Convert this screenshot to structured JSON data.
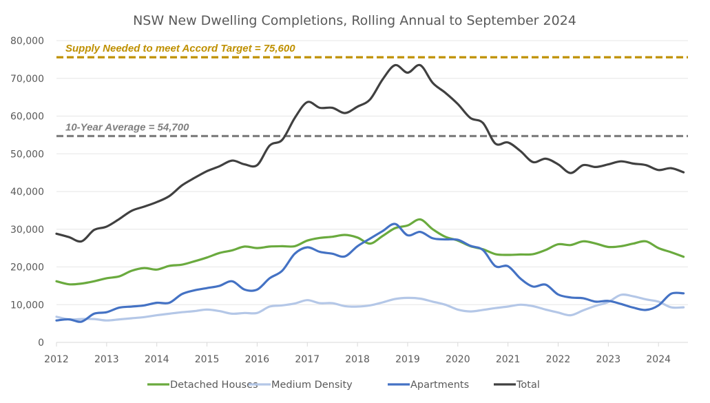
{
  "chart_data": {
    "type": "line",
    "title": "NSW New Dwelling Completions, Rolling Annual to September 2024",
    "xlabel": "",
    "ylabel": "",
    "xlim": [
      2012,
      2024.6
    ],
    "ylim": [
      0,
      80000
    ],
    "grid": true,
    "legend_position": "bottom",
    "x_ticks": [
      2012,
      2013,
      2014,
      2015,
      2016,
      2017,
      2018,
      2019,
      2020,
      2021,
      2022,
      2023,
      2024
    ],
    "x_tick_labels": [
      "2012",
      "2013",
      "2014",
      "2015",
      "2016",
      "2017",
      "2018",
      "2019",
      "2020",
      "2021",
      "2022",
      "2023",
      "2024"
    ],
    "y_ticks": [
      0,
      10000,
      20000,
      30000,
      40000,
      50000,
      60000,
      70000,
      80000
    ],
    "y_tick_labels": [
      "0",
      "10,000",
      "20,000",
      "30,000",
      "40,000",
      "50,000",
      "60,000",
      "70,000",
      "80,000"
    ],
    "x": [
      2012.0,
      2012.25,
      2012.5,
      2012.75,
      2013.0,
      2013.25,
      2013.5,
      2013.75,
      2014.0,
      2014.25,
      2014.5,
      2014.75,
      2015.0,
      2015.25,
      2015.5,
      2015.75,
      2016.0,
      2016.25,
      2016.5,
      2016.75,
      2017.0,
      2017.25,
      2017.5,
      2017.75,
      2018.0,
      2018.25,
      2018.5,
      2018.75,
      2019.0,
      2019.25,
      2019.5,
      2019.75,
      2020.0,
      2020.25,
      2020.5,
      2020.75,
      2021.0,
      2021.25,
      2021.5,
      2021.75,
      2022.0,
      2022.25,
      2022.5,
      2022.75,
      2023.0,
      2023.25,
      2023.5,
      2023.75,
      2024.0,
      2024.25,
      2024.5
    ],
    "series": [
      {
        "name": "Detached Houses",
        "color": "#6aaa3e",
        "values": [
          16200,
          15400,
          15600,
          16200,
          17000,
          17500,
          19000,
          19700,
          19300,
          20300,
          20600,
          21500,
          22500,
          23700,
          24400,
          25400,
          25000,
          25400,
          25500,
          25500,
          27000,
          27700,
          28000,
          28500,
          27800,
          26200,
          28200,
          30300,
          31000,
          32600,
          30000,
          28000,
          27000,
          25500,
          24700,
          23400,
          23200,
          23300,
          23400,
          24500,
          26000,
          25800,
          26800,
          26200,
          25300,
          25500,
          26200,
          26800,
          25000,
          23900,
          22700
        ]
      },
      {
        "name": "Medium Density",
        "color": "#b4c7e7",
        "values": [
          6800,
          6100,
          6200,
          6200,
          5800,
          6100,
          6400,
          6700,
          7200,
          7600,
          8000,
          8300,
          8700,
          8300,
          7600,
          7800,
          7800,
          9500,
          9800,
          10300,
          11200,
          10400,
          10400,
          9600,
          9500,
          9800,
          10600,
          11500,
          11800,
          11600,
          10800,
          10000,
          8700,
          8200,
          8600,
          9100,
          9500,
          10000,
          9600,
          8700,
          7900,
          7200,
          8500,
          9700,
          10700,
          12600,
          12200,
          11400,
          10800,
          9300,
          9300
        ]
      },
      {
        "name": "Apartments",
        "color": "#4472c4",
        "values": [
          5800,
          6100,
          5500,
          7600,
          8000,
          9200,
          9500,
          9800,
          10500,
          10500,
          12800,
          13800,
          14400,
          15000,
          16200,
          14000,
          14000,
          17000,
          19000,
          23500,
          25200,
          24000,
          23500,
          22800,
          25500,
          27500,
          29500,
          31400,
          28400,
          29300,
          27600,
          27300,
          27200,
          25600,
          24500,
          20200,
          20200,
          16900,
          14800,
          15300,
          12700,
          11900,
          11700,
          10800,
          11000,
          10200,
          9200,
          8600,
          9800,
          12900,
          13000
        ]
      },
      {
        "name": "Total",
        "color": "#404040",
        "values": [
          28800,
          27900,
          26800,
          29800,
          30700,
          32700,
          34900,
          36000,
          37200,
          38800,
          41600,
          43600,
          45400,
          46700,
          48200,
          47200,
          47000,
          52200,
          53700,
          59500,
          63700,
          62200,
          62200,
          60800,
          62500,
          64400,
          69700,
          73500,
          71500,
          73500,
          68800,
          66200,
          63200,
          59500,
          58200,
          52700,
          53000,
          50700,
          47800,
          48700,
          47200,
          44900,
          47000,
          46500,
          47200,
          48000,
          47400,
          47000,
          45700,
          46200,
          45100
        ]
      }
    ],
    "reference_lines": [
      {
        "name": "Accord Target",
        "value": 75600,
        "label": "Supply Needed to meet Accord Target = 75,600",
        "color": "#bf9000"
      },
      {
        "name": "10-Year Average",
        "value": 54700,
        "label": "10-Year Average = 54,700",
        "color": "#7f7f7f"
      }
    ],
    "legend": [
      "Detached Houses",
      "Medium Density",
      "Apartments",
      "Total"
    ]
  }
}
